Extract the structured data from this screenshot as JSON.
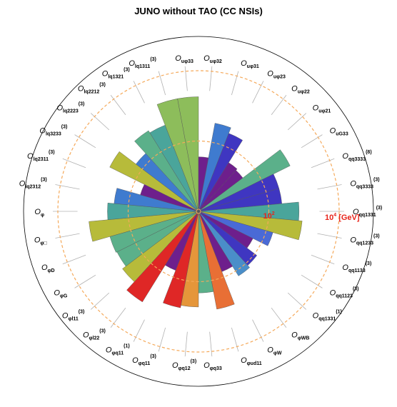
{
  "chart_data": {
    "type": "polar-bar",
    "title": "JUNO without TAO (CC NSIs)",
    "radial_scale": {
      "type": "log",
      "rmin_exp": 0,
      "rmax_exp": 4,
      "unit": "[GeV]",
      "base": "10",
      "outer_label_exp": "4",
      "inner_label_exp": "2"
    },
    "categories": [
      {
        "label": "O",
        "sub": "uφ33",
        "sup": "",
        "value": 3.26,
        "color": "#8dbd5b"
      },
      {
        "label": "O",
        "sub": "uφ32",
        "sup": "",
        "value": 1.55,
        "color": "#6e1f8c"
      },
      {
        "label": "O",
        "sub": "uφ31",
        "sup": "",
        "value": 2.55,
        "color": "#3f7bcf"
      },
      {
        "label": "O",
        "sub": "uφ23",
        "sup": "",
        "value": 2.38,
        "color": "#3f36c1"
      },
      {
        "label": "O",
        "sub": "uφ22",
        "sup": "",
        "value": 1.63,
        "color": "#6e1f8c"
      },
      {
        "label": "O",
        "sub": "uφ21",
        "sup": "",
        "value": 1.58,
        "color": "#6e1f8c"
      },
      {
        "label": "O",
        "sub": "uG33",
        "sup": "",
        "value": 2.91,
        "color": "#5bb08a"
      },
      {
        "label": "O",
        "sub": "qq3333",
        "sup": "(8)",
        "value": 2.38,
        "color": "#3f36c1"
      },
      {
        "label": "O",
        "sub": "qq3333",
        "sup": "(3)",
        "value": 2.38,
        "color": "#3f36c1"
      },
      {
        "label": "O",
        "sub": "qq1331",
        "sup": "(3)",
        "value": 2.86,
        "color": "#4aa59b"
      },
      {
        "label": "O",
        "sub": "qq1233",
        "sup": "(3)",
        "value": 2.96,
        "color": "#b7bb3a"
      },
      {
        "label": "O",
        "sub": "qq1133",
        "sup": "(3)",
        "value": 2.2,
        "color": "#4a6ad6"
      },
      {
        "label": "O",
        "sub": "qq1123",
        "sup": "(3)",
        "value": 1.73,
        "color": "#6e1f8c"
      },
      {
        "label": "O",
        "sub": "qq1331",
        "sup": "(1)",
        "value": 2.08,
        "color": "#3f36c1"
      },
      {
        "label": "O",
        "sub": "φWB",
        "sup": "",
        "value": 2.16,
        "color": "#4a8ec9"
      },
      {
        "label": "O",
        "sub": "φW",
        "sup": "",
        "value": 1.84,
        "color": "#6e1f8c"
      },
      {
        "label": "O",
        "sub": "φud11",
        "sup": "",
        "value": 2.83,
        "color": "#e86f35"
      },
      {
        "label": "O",
        "sub": "φq33",
        "sup": "",
        "value": 2.32,
        "color": "#5bb08a"
      },
      {
        "label": "O",
        "sub": "φq12",
        "sup": "(3)",
        "value": 2.72,
        "color": "#e5963a"
      },
      {
        "label": "O",
        "sub": "φq11",
        "sup": "(3)",
        "value": 2.79,
        "color": "#df2726"
      },
      {
        "label": "O",
        "sub": "φq11",
        "sup": "(1)",
        "value": 1.8,
        "color": "#6e1f8c"
      },
      {
        "label": "O",
        "sub": "φl22",
        "sup": "(3)",
        "value": 3.03,
        "color": "#df2726"
      },
      {
        "label": "O",
        "sub": "φl11",
        "sup": "(3)",
        "value": 2.71,
        "color": "#b7bb3a"
      },
      {
        "label": "O",
        "sub": "φG",
        "sup": "",
        "value": 2.59,
        "color": "#5bb08a"
      },
      {
        "label": "O",
        "sub": "φD",
        "sup": "",
        "value": 2.62,
        "color": "#5bb08a"
      },
      {
        "label": "O",
        "sub": "φ□",
        "sup": "",
        "value": 3.13,
        "color": "#b7bb3a"
      },
      {
        "label": "O",
        "sub": "φ",
        "sup": "",
        "value": 2.59,
        "color": "#4aa59b"
      },
      {
        "label": "O",
        "sub": "lq2312",
        "sup": "(3)",
        "value": 2.41,
        "color": "#3f7bcf"
      },
      {
        "label": "O",
        "sub": "lq2311",
        "sup": "(3)",
        "value": 1.72,
        "color": "#6e1f8c"
      },
      {
        "label": "O",
        "sub": "lq3233",
        "sup": "(3)",
        "value": 2.82,
        "color": "#b7bb3a"
      },
      {
        "label": "O",
        "sub": "lq2223",
        "sup": "(3)",
        "value": 2.23,
        "color": "#3f7bcf"
      },
      {
        "label": "O",
        "sub": "lq2212",
        "sup": "(3)",
        "value": 2.7,
        "color": "#5bb08a"
      },
      {
        "label": "O",
        "sub": "lq1321",
        "sup": "(3)",
        "value": 2.63,
        "color": "#4aa59b"
      },
      {
        "label": "O",
        "sub": "lq1311",
        "sup": "(3)",
        "value": 3.26,
        "color": "#8dbd5b"
      }
    ]
  }
}
